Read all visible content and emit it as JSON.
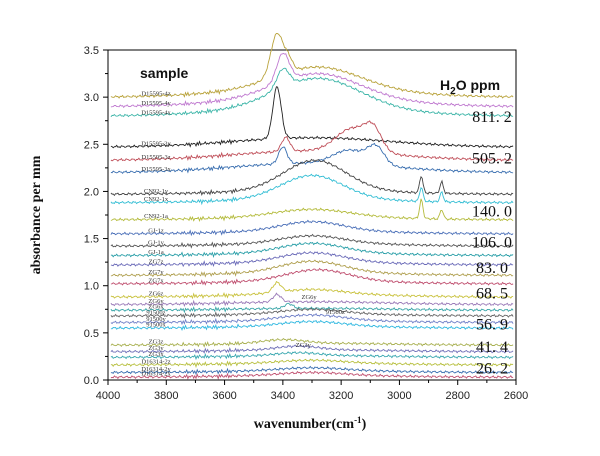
{
  "chart_data": {
    "type": "line",
    "xlabel": "wavenumber(cm",
    "xlabel_sup": "-1",
    "xlabel_tail": ")",
    "ylabel": "absorbance per mm",
    "xlim": [
      4000,
      2600
    ],
    "ylim": [
      0,
      3.5
    ],
    "x_reversed": true,
    "x_ticks": [
      4000,
      3800,
      3600,
      3400,
      3200,
      3000,
      2800,
      2600
    ],
    "y_ticks": [
      "0.0",
      "0.5",
      "1.0",
      "1.5",
      "2.0",
      "2.5",
      "3.0",
      "3.5"
    ],
    "grid": false,
    "sample_header": "sample",
    "ppm_header": "H",
    "ppm_header_sub": "2",
    "ppm_header_tail": "O ppm",
    "ppm_groups": [
      {
        "ppm": "811. 2",
        "y": 2.8
      },
      {
        "ppm": "505. 2",
        "y": 2.36
      },
      {
        "ppm": "140. 0",
        "y": 1.8
      },
      {
        "ppm": "106. 0",
        "y": 1.47
      },
      {
        "ppm": "83. 0",
        "y": 1.2
      },
      {
        "ppm": "68. 5",
        "y": 0.93
      },
      {
        "ppm": "56. 9",
        "y": 0.6
      },
      {
        "ppm": "41. 4",
        "y": 0.36
      },
      {
        "ppm": "26. 2",
        "y": 0.13
      }
    ],
    "series": [
      {
        "name": "D15595-4z",
        "color": "#b9a33c",
        "base": 3.0,
        "slope": 0.1,
        "peaks": [
          [
            3420,
            0.45,
            30
          ],
          [
            3380,
            0.12,
            20
          ],
          [
            3280,
            0.22,
            200
          ]
        ]
      },
      {
        "name": "D15595-4y",
        "color": "#c07ad0",
        "base": 2.9,
        "slope": 0.1,
        "peaks": [
          [
            3400,
            0.3,
            30
          ],
          [
            3280,
            0.25,
            200
          ]
        ]
      },
      {
        "name": "D15595-4x",
        "color": "#3fb6a9",
        "base": 2.8,
        "slope": 0.1,
        "peaks": [
          [
            3400,
            0.2,
            30
          ],
          [
            3280,
            0.3,
            200
          ]
        ]
      },
      {
        "name": "D15595-3y",
        "color": "#222222",
        "base": 2.47,
        "slope": 0.1,
        "peaks": [
          [
            3420,
            0.55,
            20
          ]
        ]
      },
      {
        "name": "D15595-3z",
        "color": "#c0505a",
        "base": 2.33,
        "slope": 0.1,
        "peaks": [
          [
            3390,
            0.15,
            20
          ],
          [
            3160,
            0.25,
            80
          ],
          [
            3090,
            0.2,
            40
          ]
        ]
      },
      {
        "name": "D15595-3x",
        "color": "#3a6fb0",
        "base": 2.2,
        "slope": 0.1,
        "peaks": [
          [
            3400,
            0.18,
            20
          ],
          [
            3170,
            0.15,
            80
          ],
          [
            3080,
            0.18,
            40
          ]
        ]
      },
      {
        "name": "CN92-1y",
        "color": "#444444",
        "base": 1.97,
        "slope": 0.04,
        "peaks": [
          [
            3290,
            0.32,
            150
          ],
          [
            2925,
            0.18,
            8
          ],
          [
            2855,
            0.12,
            8
          ]
        ]
      },
      {
        "name": "CN92-1x",
        "color": "#34bed4",
        "base": 1.88,
        "slope": 0.04,
        "peaks": [
          [
            3300,
            0.25,
            150
          ],
          [
            2925,
            0.15,
            8
          ],
          [
            2855,
            0.1,
            8
          ]
        ]
      },
      {
        "name": "CN92-1a",
        "color": "#b4bb3c",
        "base": 1.7,
        "slope": 0.03,
        "peaks": [
          [
            3300,
            0.08,
            180
          ],
          [
            2925,
            0.2,
            8
          ],
          [
            2855,
            0.1,
            8
          ]
        ]
      },
      {
        "name": "GJ-1z",
        "color": "#4a6fb8",
        "base": 1.55,
        "slope": 0.03,
        "peaks": [
          [
            3300,
            0.1,
            150
          ]
        ]
      },
      {
        "name": "GJ-1y",
        "color": "#555555",
        "base": 1.42,
        "slope": 0.03,
        "peaks": [
          [
            3300,
            0.08,
            150
          ]
        ]
      },
      {
        "name": "GJ-1a",
        "color": "#2a9fa8",
        "base": 1.32,
        "slope": 0.03,
        "peaks": [
          [
            3300,
            0.1,
            150
          ]
        ]
      },
      {
        "name": "ZG7z",
        "color": "#6a6ab8",
        "base": 1.22,
        "slope": 0.03,
        "peaks": [
          [
            3300,
            0.1,
            150
          ]
        ]
      },
      {
        "name": "ZG7y",
        "color": "#b0a050",
        "base": 1.11,
        "slope": 0.03,
        "peaks": [
          [
            3300,
            0.12,
            150
          ]
        ]
      },
      {
        "name": "ZG7x",
        "color": "#c05070",
        "base": 1.02,
        "slope": 0.03,
        "peaks": [
          [
            3280,
            0.12,
            150
          ]
        ]
      },
      {
        "name": "ZG6z",
        "color": "#c9c23e",
        "base": 0.88,
        "slope": 0.03,
        "peaks": [
          [
            3420,
            0.1,
            20
          ],
          [
            3300,
            0.05,
            150
          ]
        ]
      },
      {
        "name": "ZG6y",
        "color": "#9a7ab8",
        "base": 0.8,
        "slope": 0.03,
        "peaks": [
          [
            3420,
            0.08,
            20
          ]
        ]
      },
      {
        "name": "ZG6x",
        "color": "#3aa6a8",
        "base": 0.74,
        "slope": 0.02,
        "peaks": [
          [
            3380,
            0.05,
            20
          ]
        ]
      },
      {
        "name": "91500z",
        "color": "#666666",
        "base": 0.68,
        "slope": 0.02,
        "peaks": [
          [
            3300,
            0.05,
            150
          ]
        ]
      },
      {
        "name": "91500y",
        "color": "#7080c8",
        "base": 0.61,
        "slope": 0.02,
        "peaks": [
          [
            3300,
            0.06,
            150
          ]
        ]
      },
      {
        "name": "91500x",
        "color": "#30b8e0",
        "base": 0.55,
        "slope": 0.02,
        "peaks": [
          [
            3300,
            0.05,
            150
          ]
        ]
      },
      {
        "name": "ZG3z",
        "color": "#a8b050",
        "base": 0.37,
        "slope": 0.02,
        "peaks": [
          [
            3400,
            0.04,
            100
          ]
        ]
      },
      {
        "name": "ZG3y",
        "color": "#7070b8",
        "base": 0.3,
        "slope": 0.02,
        "peaks": [
          [
            3350,
            0.04,
            100
          ]
        ]
      },
      {
        "name": "ZG3x",
        "color": "#3aa8b0",
        "base": 0.24,
        "slope": 0.02,
        "peaks": [
          [
            3350,
            0.03,
            100
          ]
        ]
      },
      {
        "name": "D16314-2z",
        "color": "#b8c040",
        "base": 0.16,
        "slope": 0.02,
        "peaks": [
          [
            3300,
            0.03,
            150
          ]
        ]
      },
      {
        "name": "D16314-2y",
        "color": "#3a6fb0",
        "base": 0.08,
        "slope": 0.02,
        "peaks": [
          [
            3300,
            0.03,
            150
          ]
        ]
      },
      {
        "name": "D16314-2x",
        "color": "#c05070",
        "base": 0.03,
        "slope": 0.02,
        "peaks": [
          [
            3300,
            0.03,
            150
          ]
        ]
      }
    ],
    "inline_labels": [
      {
        "name": "ZG6y",
        "x": 3310,
        "y": 0.86
      },
      {
        "name": "91500z",
        "x": 3220,
        "y": 0.7
      },
      {
        "name": "ZG3y",
        "x": 3330,
        "y": 0.35
      }
    ]
  }
}
